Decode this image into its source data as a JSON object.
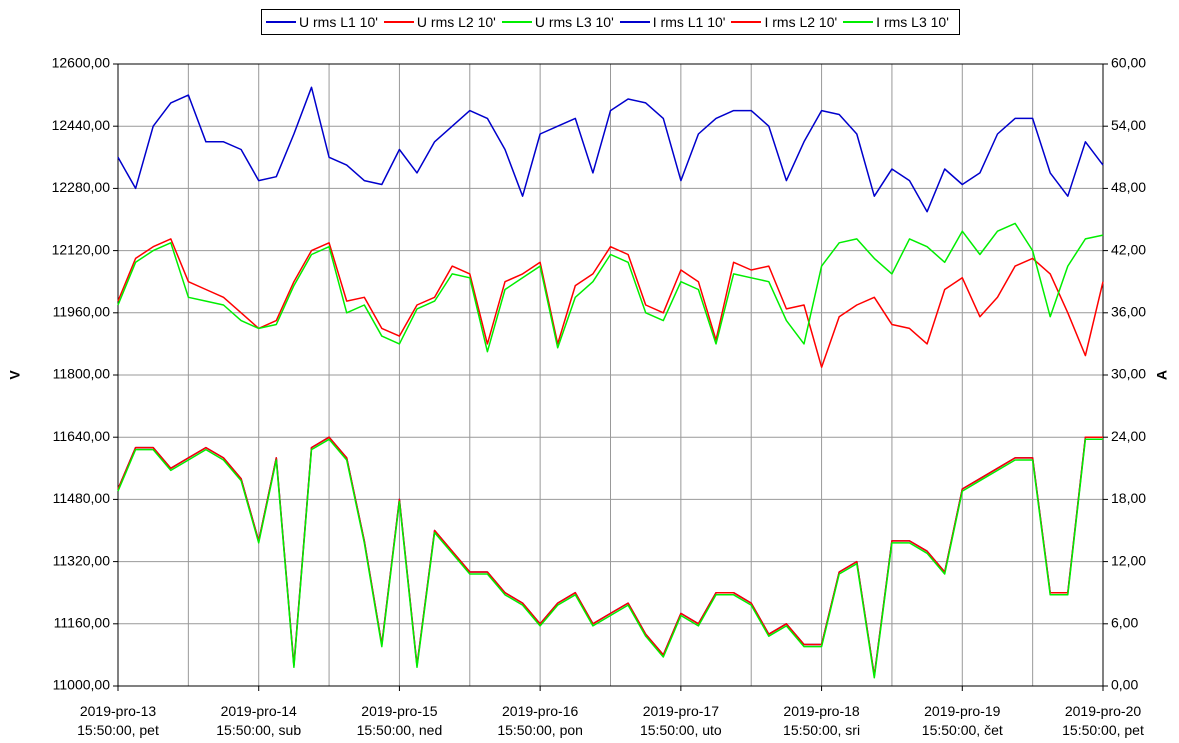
{
  "chart_data": {
    "type": "line",
    "ylabel": "V",
    "y2label": "A",
    "ylim": [
      11000,
      12600
    ],
    "yticks": [
      {
        "value": 11000,
        "label": "11000,00"
      },
      {
        "value": 11160,
        "label": "11160,00"
      },
      {
        "value": 11320,
        "label": "11320,00"
      },
      {
        "value": 11480,
        "label": "11480,00"
      },
      {
        "value": 11640,
        "label": "11640,00"
      },
      {
        "value": 11800,
        "label": "11800,00"
      },
      {
        "value": 11960,
        "label": "11960,00"
      },
      {
        "value": 12120,
        "label": "12120,00"
      },
      {
        "value": 12280,
        "label": "12280,00"
      },
      {
        "value": 12440,
        "label": "12440,00"
      },
      {
        "value": 12600,
        "label": "12600,00"
      }
    ],
    "y2lim": [
      0,
      60
    ],
    "y2ticks": [
      {
        "value": 0,
        "label": "0,00"
      },
      {
        "value": 6,
        "label": "6,00"
      },
      {
        "value": 12,
        "label": "12,00"
      },
      {
        "value": 18,
        "label": "18,00"
      },
      {
        "value": 24,
        "label": "24,00"
      },
      {
        "value": 30,
        "label": "30,00"
      },
      {
        "value": 36,
        "label": "36,00"
      },
      {
        "value": 42,
        "label": "42,00"
      },
      {
        "value": 48,
        "label": "48,00"
      },
      {
        "value": 54,
        "label": "54,00"
      },
      {
        "value": 60,
        "label": "60,00"
      }
    ],
    "xlim": [
      0,
      7
    ],
    "xticks": [
      {
        "value": 0,
        "label": "2019-pro-13\n15:50:00, pet"
      },
      {
        "value": 1,
        "label": "2019-pro-14\n15:50:00, sub"
      },
      {
        "value": 2,
        "label": "2019-pro-15\n15:50:00, ned"
      },
      {
        "value": 3,
        "label": "2019-pro-16\n15:50:00, pon"
      },
      {
        "value": 4,
        "label": "2019-pro-17\n15:50:00, uto"
      },
      {
        "value": 5,
        "label": "2019-pro-18\n15:50:00, sri"
      },
      {
        "value": 6,
        "label": "2019-pro-19\n15:50:00, čet"
      },
      {
        "value": 7,
        "label": "2019-pro-20\n15:50:00, pet"
      }
    ],
    "x_grid_interval": 0.5,
    "grid": true,
    "legend": "top",
    "x": [
      0,
      0.125,
      0.25,
      0.375,
      0.5,
      0.625,
      0.75,
      0.875,
      1,
      1.125,
      1.25,
      1.375,
      1.5,
      1.625,
      1.75,
      1.875,
      2,
      2.125,
      2.25,
      2.375,
      2.5,
      2.625,
      2.75,
      2.875,
      3,
      3.125,
      3.25,
      3.375,
      3.5,
      3.625,
      3.75,
      3.875,
      4,
      4.125,
      4.25,
      4.375,
      4.5,
      4.625,
      4.75,
      4.875,
      5,
      5.125,
      5.25,
      5.375,
      5.5,
      5.625,
      5.75,
      5.875,
      6,
      6.125,
      6.25,
      6.375,
      6.5,
      6.625,
      6.75,
      6.875,
      7
    ],
    "series": [
      {
        "name": "U rms L1 10'",
        "color": "#0000cc",
        "axis": "y",
        "values": [
          12360,
          12280,
          12440,
          12500,
          12520,
          12400,
          12400,
          12380,
          12300,
          12310,
          12420,
          12540,
          12360,
          12340,
          12300,
          12290,
          12380,
          12320,
          12400,
          12440,
          12480,
          12460,
          12380,
          12260,
          12420,
          12440,
          12460,
          12320,
          12480,
          12510,
          12500,
          12460,
          12300,
          12420,
          12460,
          12480,
          12480,
          12440,
          12300,
          12400,
          12480,
          12470,
          12420,
          12260,
          12330,
          12300,
          12220,
          12330,
          12290,
          12320,
          12420,
          12460,
          12460,
          12320,
          12260,
          12400,
          12340
        ]
      },
      {
        "name": "U rms L2 10'",
        "color": "#ff0000",
        "axis": "y",
        "values": [
          11990,
          12100,
          12130,
          12150,
          12040,
          12020,
          12000,
          11960,
          11920,
          11940,
          12040,
          12120,
          12140,
          11990,
          12000,
          11920,
          11900,
          11980,
          12000,
          12080,
          12060,
          11880,
          12040,
          12060,
          12090,
          11880,
          12030,
          12060,
          12130,
          12110,
          11980,
          11960,
          12070,
          12040,
          11890,
          12090,
          12070,
          12080,
          11970,
          11980,
          11820,
          11950,
          11980,
          12000,
          11930,
          11920,
          11880,
          12020,
          12050,
          11950,
          12000,
          12080,
          12100,
          12060,
          11960,
          11850,
          12040
        ]
      },
      {
        "name": "U rms L3 10'",
        "color": "#00ee00",
        "axis": "y",
        "values": [
          11980,
          12090,
          12120,
          12140,
          12000,
          11990,
          11980,
          11940,
          11920,
          11930,
          12030,
          12110,
          12130,
          11960,
          11980,
          11900,
          11880,
          11970,
          11990,
          12060,
          12050,
          11860,
          12020,
          12050,
          12080,
          11870,
          12000,
          12040,
          12110,
          12090,
          11960,
          11940,
          12040,
          12020,
          11880,
          12060,
          12050,
          12040,
          11940,
          11880,
          12080,
          12140,
          12150,
          12100,
          12060,
          12150,
          12130,
          12090,
          12170,
          12110,
          12170,
          12190,
          12120,
          11950,
          12080,
          12150,
          12160
        ]
      },
      {
        "name": "I rms L1 10'",
        "color": "#0000cc",
        "axis": "y2",
        "values": [
          19,
          23,
          23,
          21,
          22,
          23,
          22,
          20,
          14,
          22,
          2,
          23,
          24,
          22,
          14,
          4,
          18,
          2,
          15,
          13,
          11,
          11,
          9,
          8,
          6,
          8,
          9,
          6,
          7,
          8,
          5,
          3,
          7,
          6,
          9,
          9,
          8,
          5,
          6,
          4,
          4,
          11,
          12,
          1,
          14,
          14,
          13,
          11,
          19,
          20,
          21,
          22,
          22,
          9,
          9,
          24,
          24
        ]
      },
      {
        "name": "I rms L2 10'",
        "color": "#ff0000",
        "axis": "y2",
        "values": [
          19,
          23,
          23,
          21,
          22,
          23,
          22,
          20,
          14,
          22,
          2,
          23,
          24,
          22,
          14,
          4,
          18,
          2,
          15,
          13,
          11,
          11,
          9,
          8,
          6,
          8,
          9,
          6,
          7,
          8,
          5,
          3,
          7,
          6,
          9,
          9,
          8,
          5,
          6,
          4,
          4,
          11,
          12,
          1,
          14,
          14,
          13,
          11,
          19,
          20,
          21,
          22,
          22,
          9,
          9,
          24,
          24
        ]
      },
      {
        "name": "I rms L3 10'",
        "color": "#00ee00",
        "axis": "y2",
        "values": [
          18.8,
          22.8,
          22.8,
          20.8,
          21.8,
          22.8,
          21.8,
          19.8,
          13.8,
          21.8,
          1.8,
          22.8,
          23.8,
          21.8,
          13.8,
          3.8,
          17.8,
          1.8,
          14.8,
          12.8,
          10.8,
          10.8,
          8.8,
          7.8,
          5.8,
          7.8,
          8.8,
          5.8,
          6.8,
          7.8,
          4.8,
          2.8,
          6.8,
          5.8,
          8.8,
          8.8,
          7.8,
          4.8,
          5.8,
          3.8,
          3.8,
          10.8,
          11.8,
          0.8,
          13.8,
          13.8,
          12.8,
          10.8,
          18.8,
          19.8,
          20.8,
          21.8,
          21.8,
          8.8,
          8.8,
          23.8,
          23.8
        ]
      }
    ]
  }
}
